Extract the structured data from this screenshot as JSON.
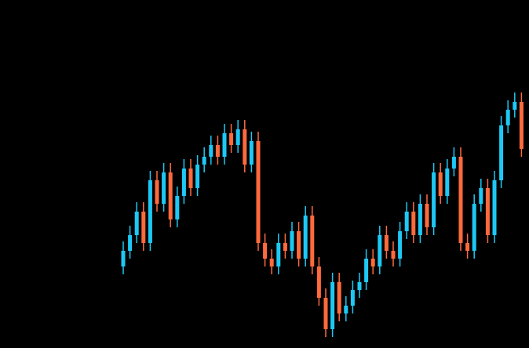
{
  "chart_data": {
    "type": "candlestick",
    "categories": [
      null,
      null,
      null,
      null,
      null,
      null,
      null,
      null,
      null,
      null,
      null,
      null,
      null,
      null,
      null,
      null,
      null,
      null,
      null,
      null,
      null,
      null,
      null,
      null,
      null,
      null,
      null,
      null,
      null,
      null,
      null,
      null,
      null,
      null,
      null,
      null,
      null,
      null,
      null,
      null,
      null,
      null,
      null,
      null,
      null,
      null,
      null,
      null,
      null,
      null,
      null,
      null,
      null,
      null,
      null,
      null,
      null,
      null,
      null,
      null
    ],
    "open": [
      104,
      124,
      144,
      174,
      134,
      214,
      184,
      224,
      164,
      194,
      229,
      204,
      234,
      244,
      259,
      244,
      274,
      259,
      279,
      234,
      264,
      134,
      114,
      104,
      134,
      124,
      149,
      114,
      169,
      104,
      64,
      24,
      84,
      44,
      54,
      74,
      84,
      114,
      104,
      144,
      124,
      114,
      149,
      174,
      144,
      184,
      154,
      224,
      194,
      229,
      244,
      134,
      124,
      184,
      204,
      144,
      214,
      284,
      304,
      314
    ],
    "high": [
      136,
      156,
      186,
      186,
      226,
      226,
      236,
      236,
      206,
      241,
      241,
      246,
      256,
      271,
      271,
      286,
      286,
      291,
      291,
      276,
      276,
      146,
      126,
      146,
      146,
      161,
      161,
      181,
      181,
      116,
      76,
      96,
      96,
      66,
      86,
      96,
      126,
      126,
      156,
      156,
      136,
      161,
      186,
      186,
      196,
      196,
      236,
      236,
      241,
      256,
      256,
      146,
      196,
      216,
      216,
      226,
      296,
      316,
      326,
      326
    ],
    "low": [
      94,
      114,
      134,
      124,
      124,
      174,
      174,
      154,
      154,
      184,
      194,
      194,
      224,
      234,
      234,
      234,
      249,
      249,
      224,
      224,
      124,
      104,
      94,
      94,
      114,
      114,
      104,
      104,
      94,
      54,
      14,
      14,
      34,
      34,
      44,
      64,
      74,
      94,
      94,
      114,
      104,
      104,
      139,
      134,
      134,
      144,
      144,
      184,
      184,
      219,
      124,
      114,
      114,
      174,
      134,
      134,
      204,
      274,
      294,
      244
    ],
    "close": [
      124,
      144,
      174,
      134,
      214,
      184,
      224,
      164,
      194,
      229,
      204,
      234,
      244,
      259,
      244,
      274,
      259,
      279,
      234,
      264,
      134,
      114,
      104,
      134,
      124,
      149,
      114,
      169,
      104,
      64,
      24,
      84,
      44,
      54,
      74,
      84,
      114,
      104,
      144,
      124,
      114,
      149,
      174,
      144,
      184,
      154,
      224,
      194,
      229,
      244,
      134,
      124,
      184,
      204,
      144,
      214,
      284,
      304,
      314,
      254
    ],
    "up_color": "#1ec8f5",
    "down_color": "#ff6a3d",
    "ylim": [
      0,
      444
    ]
  }
}
